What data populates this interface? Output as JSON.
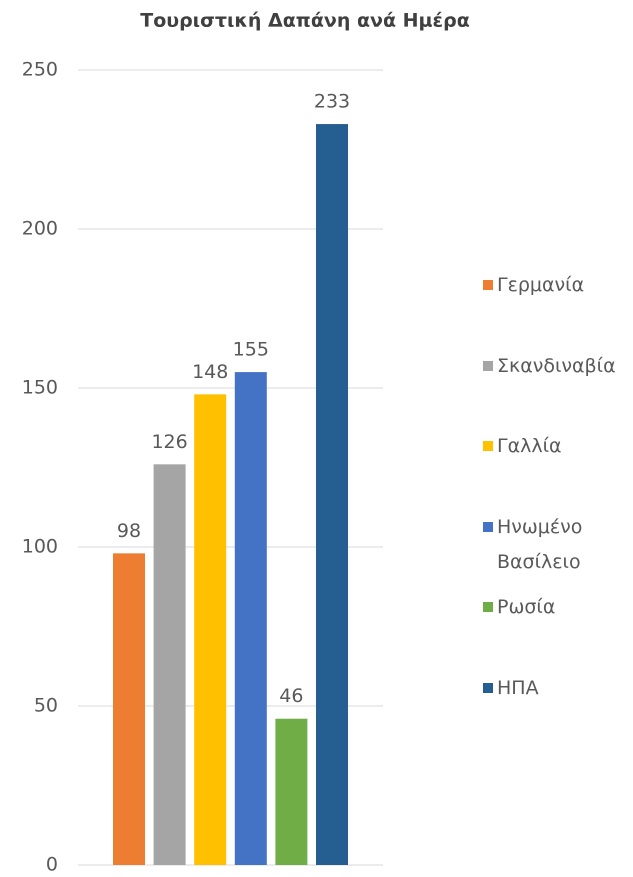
{
  "chart_data": {
    "type": "bar",
    "title": "Τουριστική Δαπάνη ανά Ημέρα",
    "categories": [
      null
    ],
    "series": [
      {
        "name": "Γερμανία",
        "color": "#ed7d31",
        "values": [
          98
        ]
      },
      {
        "name": "Σκανδιναβία",
        "color": "#a5a5a5",
        "values": [
          126
        ]
      },
      {
        "name": "Γαλλία",
        "color": "#ffc000",
        "values": [
          148
        ]
      },
      {
        "name": "Ηνωμένο Βασίλειο",
        "color": "#4472c4",
        "values": [
          155
        ]
      },
      {
        "name": "Ρωσία",
        "color": "#70ad47",
        "values": [
          46
        ]
      },
      {
        "name": "ΗΠΑ",
        "color": "#255e91",
        "values": [
          233
        ]
      }
    ],
    "ylim": [
      0,
      250
    ],
    "yticks": [
      0,
      50,
      100,
      150,
      200,
      250
    ],
    "grid": true,
    "legend": "right"
  }
}
